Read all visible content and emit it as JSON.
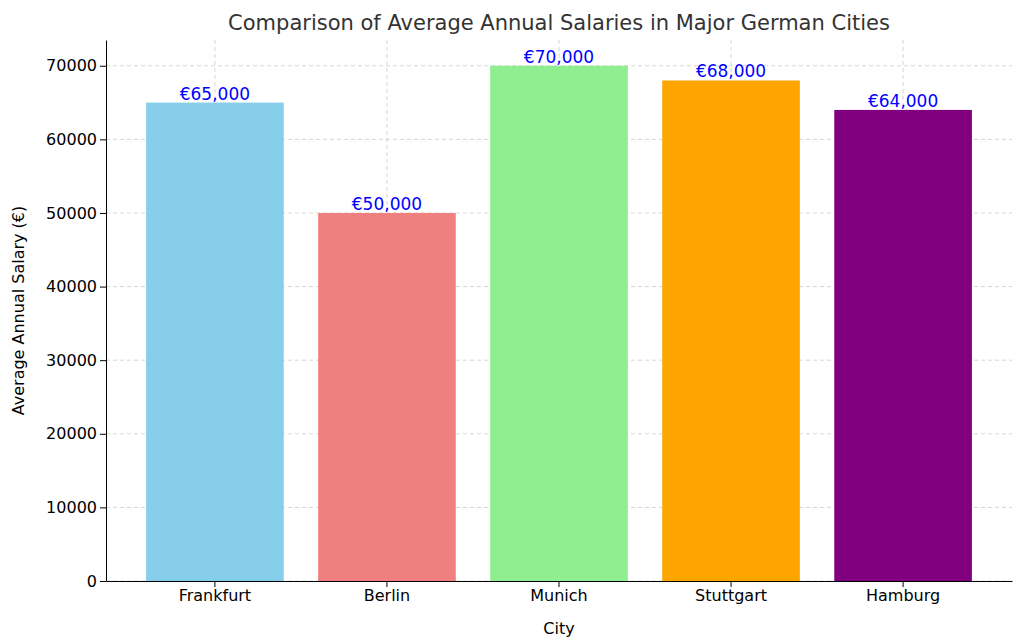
{
  "chart_data": {
    "type": "bar",
    "title": "Comparison of Average Annual Salaries in Major German Cities",
    "x_label": "City",
    "y_label": "Average Annual Salary (€)",
    "categories": [
      "Frankfurt",
      "Berlin",
      "Munich",
      "Stuttgart",
      "Hamburg"
    ],
    "values": [
      65000,
      50000,
      70000,
      68000,
      64000
    ],
    "value_labels": [
      "€65,000",
      "€50,000",
      "€70,000",
      "€68,000",
      "€64,000"
    ],
    "colors": [
      "#87ceeb",
      "#f08080",
      "#90ee90",
      "#ffa500",
      "#800080"
    ],
    "ylim": [
      0,
      73500
    ],
    "yticks": [
      0,
      10000,
      20000,
      30000,
      40000,
      50000,
      60000,
      70000
    ],
    "grid": true,
    "data_labels": true
  }
}
